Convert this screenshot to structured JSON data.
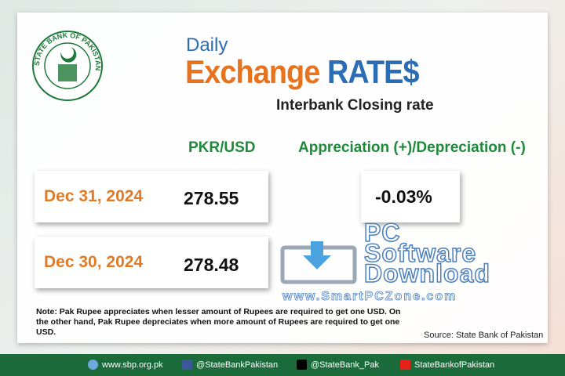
{
  "logo": {
    "text": "STATE BANK OF PAKISTAN"
  },
  "header": {
    "kicker": "Daily",
    "title_part1": "Exchange",
    "title_part2": "RATE$",
    "subtitle": "Interbank Closing rate"
  },
  "table": {
    "columns": [
      "PKR/USD",
      "Appreciation (+)/Depreciation (-)"
    ],
    "rows": [
      {
        "date": "Dec 31, 2024",
        "rate": "278.55",
        "change": "-0.03%"
      },
      {
        "date": "Dec 30, 2024",
        "rate": "278.48"
      }
    ]
  },
  "watermark": {
    "line1": "PC",
    "line2": "Software",
    "line3": "Download",
    "url": "www.SmartPCZone.com"
  },
  "note": "Note: Pak Rupee appreciates when lesser amount of Rupees are required to get one USD.  On the other hand, Pak Rupee depreciates when more amount of Rupees are required to get one USD.",
  "source": "Source: State Bank of Pakistan",
  "footer": {
    "links": [
      "www.sbp.org.pk",
      "@StateBankPakistan",
      "@StateBank_Pak",
      "StateBankofPakistan"
    ]
  }
}
